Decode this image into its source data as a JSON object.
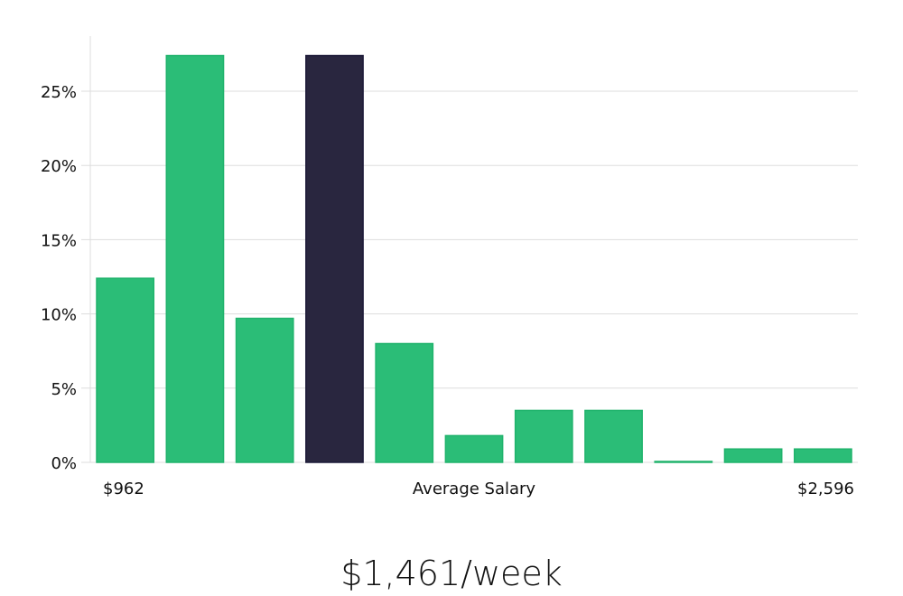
{
  "chart_data": {
    "type": "bar",
    "title": "$1,461/week",
    "xlabel": "Average Salary",
    "x_min_label": "$962",
    "x_max_label": "$2,596",
    "ylabel": "",
    "ylim": [
      0,
      28.7
    ],
    "yticks": [
      0,
      5,
      10,
      15,
      20,
      25
    ],
    "ytick_labels": [
      "0%",
      "5%",
      "10%",
      "15%",
      "20%",
      "25%"
    ],
    "grid": true,
    "values": [
      12.4,
      27.4,
      9.7,
      27.4,
      8.0,
      1.8,
      3.5,
      3.5,
      0.0,
      0.9,
      0.9
    ],
    "highlight_index": 3,
    "colors": {
      "bar": "#2bbd77",
      "bar_border": "#20b36c",
      "highlight": "#29263f",
      "highlight_border": "#1c1a38",
      "grid": "#dddddd"
    }
  }
}
